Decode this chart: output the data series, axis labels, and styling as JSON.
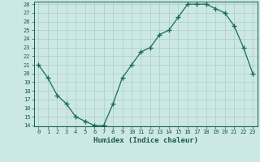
{
  "x": [
    0,
    1,
    2,
    3,
    4,
    5,
    6,
    7,
    8,
    9,
    10,
    11,
    12,
    13,
    14,
    15,
    16,
    17,
    18,
    19,
    20,
    21,
    22,
    23
  ],
  "y": [
    21,
    19.5,
    17.5,
    16.5,
    15,
    14.5,
    14,
    14,
    16.5,
    19.5,
    21,
    22.5,
    23,
    24.5,
    25,
    26.5,
    28,
    28,
    28,
    27.5,
    27,
    25.5,
    23,
    20
  ],
  "xlabel": "Humidex (Indice chaleur)",
  "ylim": [
    14,
    28
  ],
  "xlim": [
    -0.5,
    23.5
  ],
  "yticks": [
    14,
    15,
    16,
    17,
    18,
    19,
    20,
    21,
    22,
    23,
    24,
    25,
    26,
    27,
    28
  ],
  "xticks": [
    0,
    1,
    2,
    3,
    4,
    5,
    6,
    7,
    8,
    9,
    10,
    11,
    12,
    13,
    14,
    15,
    16,
    17,
    18,
    19,
    20,
    21,
    22,
    23
  ],
  "line_color": "#1a6b5a",
  "bg_color": "#cce8e4",
  "grid_color": "#aacccc",
  "text_color": "#1a5a4a",
  "xlabel_fontsize": 6.5,
  "tick_fontsize": 5.0
}
